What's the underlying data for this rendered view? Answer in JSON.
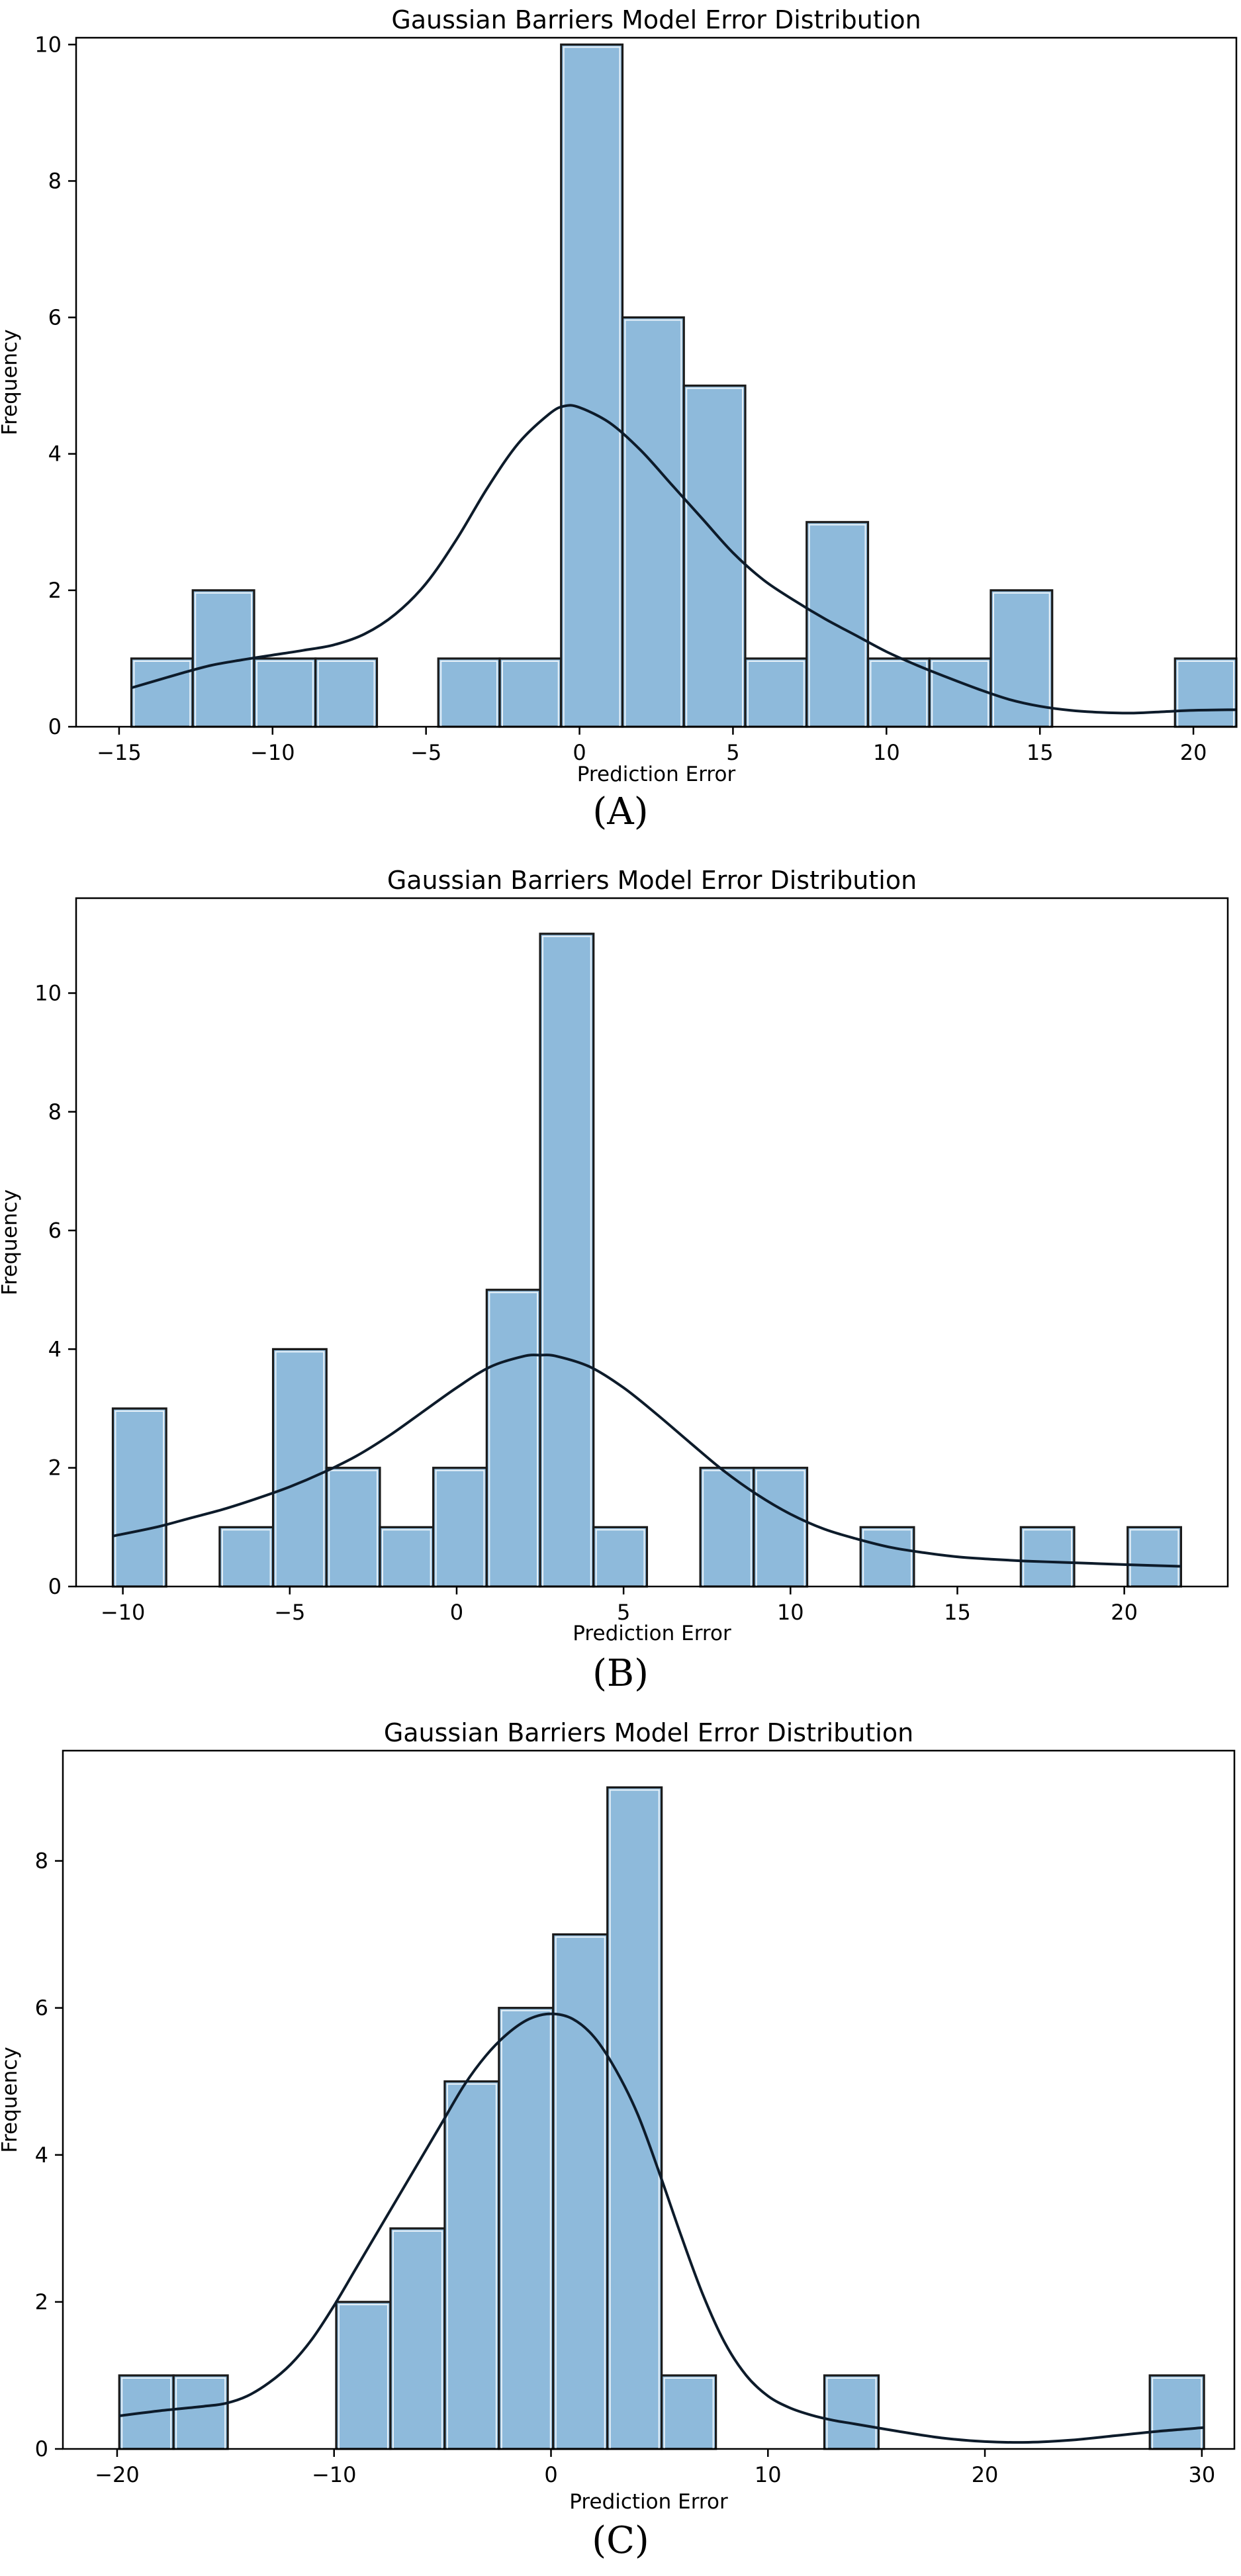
{
  "colors": {
    "bar_fill": "#8ebadb",
    "bar_stroke": "#1a1a1a",
    "kde": "#0d1b2a",
    "axis": "#000000"
  },
  "chart_data": [
    {
      "type": "bar",
      "panel_label": "(A)",
      "title": "Gaussian Barriers Model Error Distribution",
      "xlabel": "Prediction Error",
      "ylabel": "Frequency",
      "xlim": [
        -16.4,
        21.4
      ],
      "ylim": [
        0,
        10.1
      ],
      "xticks": [
        -15,
        -10,
        -5,
        0,
        5,
        10,
        15,
        20
      ],
      "xtick_labels": [
        "−15",
        "−10",
        "−5",
        "0",
        "5",
        "10",
        "15",
        "20"
      ],
      "yticks": [
        0,
        2,
        4,
        6,
        8,
        10
      ],
      "ytick_labels": [
        "0",
        "2",
        "4",
        "6",
        "8",
        "10"
      ],
      "bins": [
        {
          "x0": -14.6,
          "x1": -12.6,
          "count": 1
        },
        {
          "x0": -12.6,
          "x1": -10.6,
          "count": 2
        },
        {
          "x0": -10.6,
          "x1": -8.6,
          "count": 1
        },
        {
          "x0": -8.6,
          "x1": -6.6,
          "count": 1
        },
        {
          "x0": -6.6,
          "x1": -4.6,
          "count": 0
        },
        {
          "x0": -4.6,
          "x1": -2.6,
          "count": 1
        },
        {
          "x0": -2.6,
          "x1": -0.6,
          "count": 1
        },
        {
          "x0": -0.6,
          "x1": 1.4,
          "count": 10
        },
        {
          "x0": 1.4,
          "x1": 3.4,
          "count": 6
        },
        {
          "x0": 3.4,
          "x1": 5.4,
          "count": 5
        },
        {
          "x0": 5.4,
          "x1": 7.4,
          "count": 1
        },
        {
          "x0": 7.4,
          "x1": 9.4,
          "count": 3
        },
        {
          "x0": 9.4,
          "x1": 11.4,
          "count": 1
        },
        {
          "x0": 11.4,
          "x1": 13.4,
          "count": 1
        },
        {
          "x0": 13.4,
          "x1": 15.4,
          "count": 2
        },
        {
          "x0": 15.4,
          "x1": 17.4,
          "count": 0
        },
        {
          "x0": 17.4,
          "x1": 19.4,
          "count": 0
        },
        {
          "x0": 19.4,
          "x1": 21.4,
          "count": 1
        }
      ],
      "kde": {
        "x": [
          -14.6,
          -13,
          -12,
          -11,
          -10,
          -9,
          -8,
          -7,
          -6,
          -5,
          -4,
          -3,
          -2,
          -1,
          -0.5,
          0,
          1,
          2,
          3,
          4,
          5,
          6,
          7,
          8,
          9,
          10,
          11,
          12,
          13,
          14,
          15,
          16,
          17,
          18,
          19,
          20,
          21.4
        ],
        "y": [
          0.57,
          0.78,
          0.9,
          0.98,
          1.05,
          1.12,
          1.2,
          1.36,
          1.65,
          2.1,
          2.75,
          3.5,
          4.15,
          4.58,
          4.7,
          4.68,
          4.45,
          4.05,
          3.55,
          3.05,
          2.55,
          2.15,
          1.85,
          1.58,
          1.34,
          1.1,
          0.9,
          0.72,
          0.55,
          0.4,
          0.3,
          0.24,
          0.21,
          0.2,
          0.22,
          0.24,
          0.25
        ]
      }
    },
    {
      "type": "bar",
      "panel_label": "(B)",
      "title": "Gaussian Barriers Model Error Distribution",
      "xlabel": "Prediction Error",
      "ylabel": "Frequency",
      "xlim": [
        -11.4,
        23.1
      ],
      "ylim": [
        0,
        11.6
      ],
      "xticks": [
        -10,
        -5,
        0,
        5,
        10,
        15,
        20
      ],
      "xtick_labels": [
        "−10",
        "−5",
        "0",
        "5",
        "10",
        "15",
        "20"
      ],
      "yticks": [
        0,
        2,
        4,
        6,
        8,
        10
      ],
      "ytick_labels": [
        "0",
        "2",
        "4",
        "6",
        "8",
        "10"
      ],
      "bins": [
        {
          "x0": -10.3,
          "x1": -8.7,
          "count": 3
        },
        {
          "x0": -8.7,
          "x1": -7.1,
          "count": 0
        },
        {
          "x0": -7.1,
          "x1": -5.5,
          "count": 1
        },
        {
          "x0": -5.5,
          "x1": -3.9,
          "count": 4
        },
        {
          "x0": -3.9,
          "x1": -2.3,
          "count": 2
        },
        {
          "x0": -2.3,
          "x1": -0.7,
          "count": 1
        },
        {
          "x0": -0.7,
          "x1": 0.9,
          "count": 2
        },
        {
          "x0": 0.9,
          "x1": 2.5,
          "count": 5
        },
        {
          "x0": 2.5,
          "x1": 4.1,
          "count": 11
        },
        {
          "x0": 4.1,
          "x1": 5.7,
          "count": 1
        },
        {
          "x0": 5.7,
          "x1": 7.3,
          "count": 0
        },
        {
          "x0": 7.3,
          "x1": 8.9,
          "count": 2
        },
        {
          "x0": 8.9,
          "x1": 10.5,
          "count": 2
        },
        {
          "x0": 10.5,
          "x1": 12.1,
          "count": 0
        },
        {
          "x0": 12.1,
          "x1": 13.7,
          "count": 1
        },
        {
          "x0": 13.7,
          "x1": 15.3,
          "count": 0
        },
        {
          "x0": 15.3,
          "x1": 16.9,
          "count": 0
        },
        {
          "x0": 16.9,
          "x1": 18.5,
          "count": 1
        },
        {
          "x0": 18.5,
          "x1": 20.1,
          "count": 0
        },
        {
          "x0": 20.1,
          "x1": 21.7,
          "count": 1
        }
      ],
      "kde": {
        "x": [
          -10.3,
          -9,
          -8,
          -7,
          -6,
          -5,
          -4,
          -3,
          -2,
          -1,
          0,
          1,
          2,
          2.5,
          3,
          4,
          5,
          6,
          7,
          8,
          9,
          10,
          11,
          12,
          13,
          14,
          15,
          16,
          17,
          18,
          19,
          20,
          21.7
        ],
        "y": [
          0.85,
          1.0,
          1.15,
          1.3,
          1.48,
          1.68,
          1.92,
          2.2,
          2.55,
          2.95,
          3.35,
          3.7,
          3.88,
          3.9,
          3.88,
          3.7,
          3.35,
          2.9,
          2.42,
          1.95,
          1.55,
          1.22,
          0.97,
          0.8,
          0.66,
          0.57,
          0.5,
          0.46,
          0.43,
          0.41,
          0.39,
          0.37,
          0.34
        ]
      }
    },
    {
      "type": "bar",
      "panel_label": "(C)",
      "title": "Gaussian Barriers Model Error Distribution",
      "xlabel": "Prediction Error",
      "ylabel": "Frequency",
      "xlim": [
        -22.5,
        31.5
      ],
      "ylim": [
        0,
        9.5
      ],
      "xticks": [
        -20,
        -10,
        0,
        10,
        20,
        30
      ],
      "xtick_labels": [
        "−20",
        "−10",
        "0",
        "10",
        "20",
        "30"
      ],
      "yticks": [
        0,
        2,
        4,
        6,
        8
      ],
      "ytick_labels": [
        "0",
        "2",
        "4",
        "6",
        "8"
      ],
      "bins": [
        {
          "x0": -19.9,
          "x1": -17.4,
          "count": 1
        },
        {
          "x0": -17.4,
          "x1": -14.9,
          "count": 1
        },
        {
          "x0": -14.9,
          "x1": -12.4,
          "count": 0
        },
        {
          "x0": -12.4,
          "x1": -9.9,
          "count": 0
        },
        {
          "x0": -9.9,
          "x1": -7.4,
          "count": 2
        },
        {
          "x0": -7.4,
          "x1": -4.9,
          "count": 3
        },
        {
          "x0": -4.9,
          "x1": -2.4,
          "count": 5
        },
        {
          "x0": -2.4,
          "x1": 0.1,
          "count": 6
        },
        {
          "x0": 0.1,
          "x1": 2.6,
          "count": 7
        },
        {
          "x0": 2.6,
          "x1": 5.1,
          "count": 9
        },
        {
          "x0": 5.1,
          "x1": 7.6,
          "count": 1
        },
        {
          "x0": 7.6,
          "x1": 10.1,
          "count": 0
        },
        {
          "x0": 10.1,
          "x1": 12.6,
          "count": 0
        },
        {
          "x0": 12.6,
          "x1": 15.1,
          "count": 1
        },
        {
          "x0": 15.1,
          "x1": 17.6,
          "count": 0
        },
        {
          "x0": 17.6,
          "x1": 20.1,
          "count": 0
        },
        {
          "x0": 20.1,
          "x1": 22.6,
          "count": 0
        },
        {
          "x0": 22.6,
          "x1": 25.1,
          "count": 0
        },
        {
          "x0": 25.1,
          "x1": 27.6,
          "count": 0
        },
        {
          "x0": 27.6,
          "x1": 30.1,
          "count": 1
        }
      ],
      "kde": {
        "x": [
          -19.9,
          -18,
          -16,
          -15,
          -14,
          -13,
          -12,
          -11,
          -10,
          -9,
          -8,
          -7,
          -6,
          -5,
          -4,
          -3,
          -2,
          -1,
          0,
          1,
          2,
          3,
          4,
          5,
          6,
          7,
          8,
          9,
          10,
          11,
          12,
          13,
          14,
          16,
          18,
          20,
          22,
          24,
          26,
          28,
          30.1
        ],
        "y": [
          0.45,
          0.52,
          0.58,
          0.62,
          0.72,
          0.9,
          1.15,
          1.5,
          1.95,
          2.45,
          2.95,
          3.45,
          3.95,
          4.45,
          4.95,
          5.35,
          5.65,
          5.85,
          5.92,
          5.85,
          5.6,
          5.15,
          4.55,
          3.75,
          2.9,
          2.1,
          1.45,
          1.0,
          0.72,
          0.56,
          0.46,
          0.39,
          0.34,
          0.24,
          0.15,
          0.1,
          0.09,
          0.12,
          0.18,
          0.24,
          0.29
        ]
      }
    }
  ]
}
